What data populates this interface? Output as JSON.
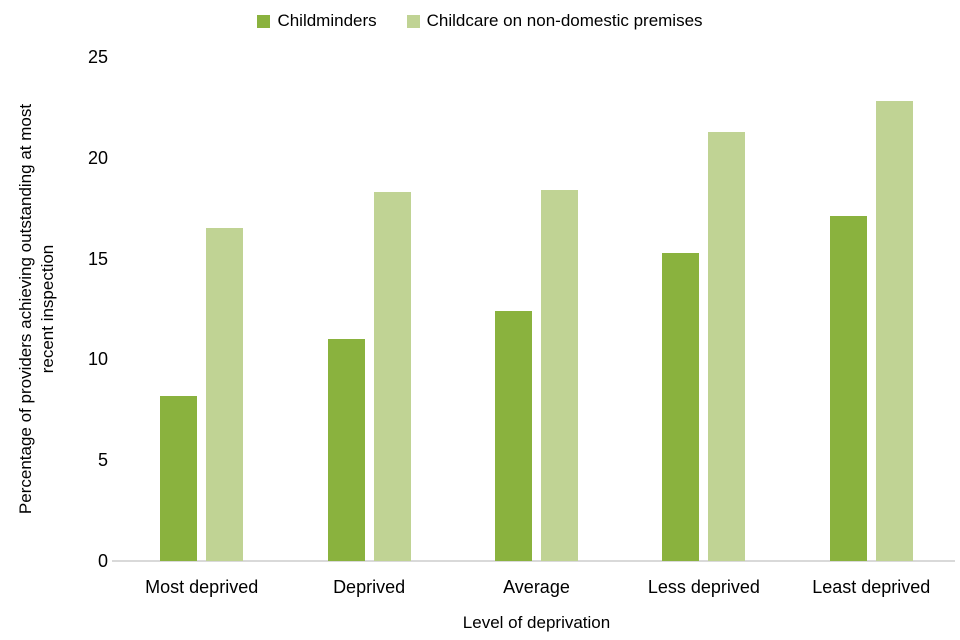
{
  "chart_data": {
    "type": "bar",
    "title": "",
    "categories": [
      "Most deprived",
      "Deprived",
      "Average",
      "Less deprived",
      "Least deprived"
    ],
    "series": [
      {
        "name": "Childminders",
        "color": "#8AB23E",
        "values": [
          8.2,
          11.0,
          12.4,
          15.3,
          17.1
        ]
      },
      {
        "name": "Childcare on non-domestic premises",
        "color": "#C0D394",
        "values": [
          16.5,
          18.3,
          18.4,
          21.3,
          22.8
        ]
      }
    ],
    "xlabel": "Level of deprivation",
    "ylabel": "Percentage of providers achieving outstanding at most recent inspection",
    "ylabel_lines": [
      "Percentage of providers achieving outstanding at most",
      "recent inspection"
    ],
    "ylim": [
      0,
      25
    ],
    "yticks": [
      0,
      5,
      10,
      15,
      20,
      25
    ],
    "grid": false,
    "legend_position": "top-center"
  },
  "colors": {
    "axis_line": "#D9D9D9",
    "text": "#000000",
    "background": "#FFFFFF"
  }
}
